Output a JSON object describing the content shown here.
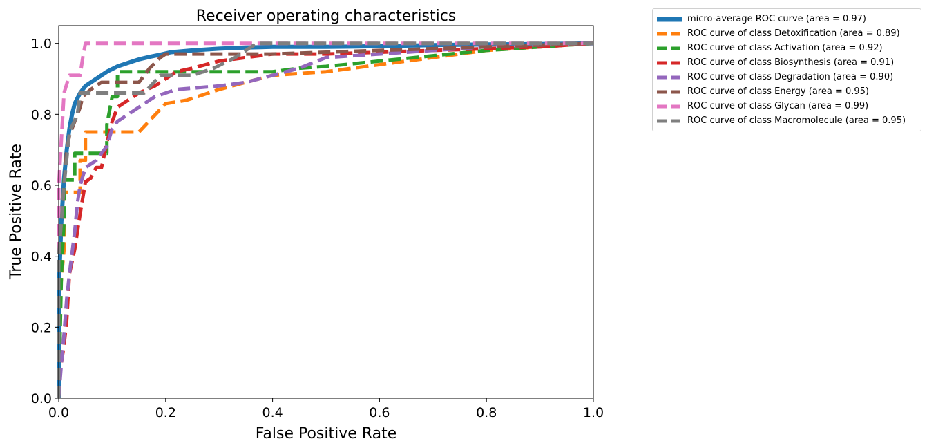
{
  "chart_data": {
    "type": "line",
    "title": "Receiver operating characteristics",
    "xlabel": "False Positive Rate",
    "ylabel": "True Positive Rate",
    "xlim": [
      0.0,
      1.0
    ],
    "ylim": [
      0.0,
      1.05
    ],
    "xticks": [
      "0.0",
      "0.2",
      "0.4",
      "0.6",
      "0.8",
      "1.0"
    ],
    "yticks": [
      "0.0",
      "0.2",
      "0.4",
      "0.6",
      "0.8",
      "1.0"
    ],
    "grid": false,
    "legend_position": "outside-top-right",
    "series": [
      {
        "name": "micro-average ROC curve (area = 0.97)",
        "color": "#1f77b4",
        "style": "solid",
        "x": [
          0.0,
          0.0,
          0.005,
          0.01,
          0.015,
          0.02,
          0.025,
          0.03,
          0.04,
          0.05,
          0.07,
          0.09,
          0.11,
          0.13,
          0.15,
          0.17,
          0.19,
          0.21,
          0.25,
          0.3,
          0.35,
          0.4,
          0.5,
          0.6,
          0.7,
          0.8,
          0.9,
          1.0
        ],
        "y": [
          0.0,
          0.3,
          0.5,
          0.62,
          0.7,
          0.76,
          0.8,
          0.83,
          0.86,
          0.88,
          0.9,
          0.92,
          0.935,
          0.945,
          0.955,
          0.962,
          0.968,
          0.975,
          0.98,
          0.985,
          0.988,
          0.99,
          0.99,
          0.992,
          0.995,
          0.997,
          0.998,
          1.0
        ]
      },
      {
        "name": "ROC curve of class Detoxification (area = 0.89)",
        "color": "#ff7f0e",
        "style": "dashed",
        "x": [
          0.0,
          0.0,
          0.01,
          0.01,
          0.03,
          0.04,
          0.04,
          0.05,
          0.05,
          0.15,
          0.2,
          0.2,
          0.24,
          0.3,
          0.35,
          0.4,
          0.5,
          0.6,
          0.7,
          0.8,
          0.9,
          1.0
        ],
        "y": [
          0.0,
          0.25,
          0.42,
          0.58,
          0.58,
          0.58,
          0.67,
          0.67,
          0.75,
          0.75,
          0.83,
          0.83,
          0.84,
          0.87,
          0.89,
          0.91,
          0.92,
          0.94,
          0.96,
          0.98,
          0.99,
          1.0
        ]
      },
      {
        "name": "ROC curve of class Activation (area = 0.92)",
        "color": "#2ca02c",
        "style": "dashed",
        "x": [
          0.0,
          0.005,
          0.01,
          0.01,
          0.03,
          0.03,
          0.05,
          0.05,
          0.09,
          0.09,
          0.1,
          0.11,
          0.11,
          0.2,
          0.3,
          0.4,
          0.45,
          0.5,
          0.6,
          0.7,
          0.8,
          0.9,
          1.0
        ],
        "y": [
          0.0,
          0.35,
          0.5,
          0.615,
          0.615,
          0.69,
          0.69,
          0.69,
          0.69,
          0.77,
          0.85,
          0.85,
          0.92,
          0.92,
          0.92,
          0.92,
          0.93,
          0.935,
          0.95,
          0.965,
          0.98,
          0.99,
          1.0
        ]
      },
      {
        "name": "ROC curve of class Biosynthesis (area = 0.91)",
        "color": "#d62728",
        "style": "dashed",
        "x": [
          0.0,
          0.0,
          0.01,
          0.015,
          0.02,
          0.03,
          0.04,
          0.05,
          0.06,
          0.07,
          0.08,
          0.09,
          0.1,
          0.11,
          0.13,
          0.15,
          0.18,
          0.2,
          0.22,
          0.25,
          0.3,
          0.35,
          0.4,
          0.5,
          0.6,
          0.7,
          0.8,
          0.9,
          1.0
        ],
        "y": [
          0.0,
          0.05,
          0.15,
          0.22,
          0.35,
          0.42,
          0.52,
          0.61,
          0.62,
          0.65,
          0.65,
          0.72,
          0.78,
          0.82,
          0.84,
          0.86,
          0.88,
          0.9,
          0.92,
          0.93,
          0.95,
          0.96,
          0.97,
          0.97,
          0.975,
          0.98,
          0.985,
          0.99,
          1.0
        ]
      },
      {
        "name": "ROC curve of class Degradation (area = 0.90)",
        "color": "#9467bd",
        "style": "dashed",
        "x": [
          0.0,
          0.005,
          0.01,
          0.015,
          0.02,
          0.03,
          0.035,
          0.04,
          0.05,
          0.07,
          0.08,
          0.09,
          0.1,
          0.11,
          0.13,
          0.15,
          0.18,
          0.22,
          0.3,
          0.35,
          0.4,
          0.45,
          0.5,
          0.6,
          0.7,
          0.8,
          0.9,
          1.0
        ],
        "y": [
          0.0,
          0.1,
          0.18,
          0.28,
          0.35,
          0.47,
          0.55,
          0.6,
          0.65,
          0.67,
          0.69,
          0.71,
          0.76,
          0.78,
          0.8,
          0.82,
          0.85,
          0.87,
          0.88,
          0.89,
          0.91,
          0.93,
          0.96,
          0.97,
          0.98,
          0.99,
          0.995,
          1.0
        ]
      },
      {
        "name": "ROC curve of class Energy (area = 0.95)",
        "color": "#8c564b",
        "style": "dashed",
        "x": [
          0.0,
          0.0,
          0.01,
          0.015,
          0.02,
          0.025,
          0.03,
          0.04,
          0.045,
          0.06,
          0.08,
          0.12,
          0.15,
          0.17,
          0.19,
          0.2,
          0.25,
          0.3,
          0.35,
          0.4,
          0.5,
          0.6,
          0.7,
          0.8,
          0.9,
          1.0
        ],
        "y": [
          0.0,
          0.4,
          0.6,
          0.7,
          0.74,
          0.76,
          0.78,
          0.82,
          0.85,
          0.87,
          0.89,
          0.89,
          0.89,
          0.93,
          0.96,
          0.97,
          0.97,
          0.97,
          0.97,
          0.97,
          0.975,
          0.98,
          0.985,
          0.99,
          0.995,
          1.0
        ]
      },
      {
        "name": "ROC curve of class Glycan (area = 0.99)",
        "color": "#e377c2",
        "style": "dashed",
        "x": [
          0.0,
          0.0,
          0.005,
          0.01,
          0.02,
          0.02,
          0.04,
          0.045,
          0.05,
          1.0
        ],
        "y": [
          0.0,
          0.6,
          0.73,
          0.86,
          0.91,
          0.91,
          0.91,
          0.96,
          1.0,
          1.0
        ]
      },
      {
        "name": "ROC curve of class Macromolecule (area = 0.95)",
        "color": "#7f7f7f",
        "style": "dashed",
        "x": [
          0.0,
          0.0,
          0.01,
          0.02,
          0.035,
          0.04,
          0.045,
          0.16,
          0.19,
          0.2,
          0.25,
          0.29,
          0.33,
          0.37,
          0.4,
          0.5,
          0.6,
          0.7,
          0.8,
          0.9,
          1.0
        ],
        "y": [
          0.0,
          0.4,
          0.6,
          0.75,
          0.8,
          0.86,
          0.86,
          0.86,
          0.91,
          0.91,
          0.91,
          0.93,
          0.96,
          1.0,
          1.0,
          1.0,
          1.0,
          1.0,
          1.0,
          1.0,
          1.0
        ]
      }
    ]
  }
}
